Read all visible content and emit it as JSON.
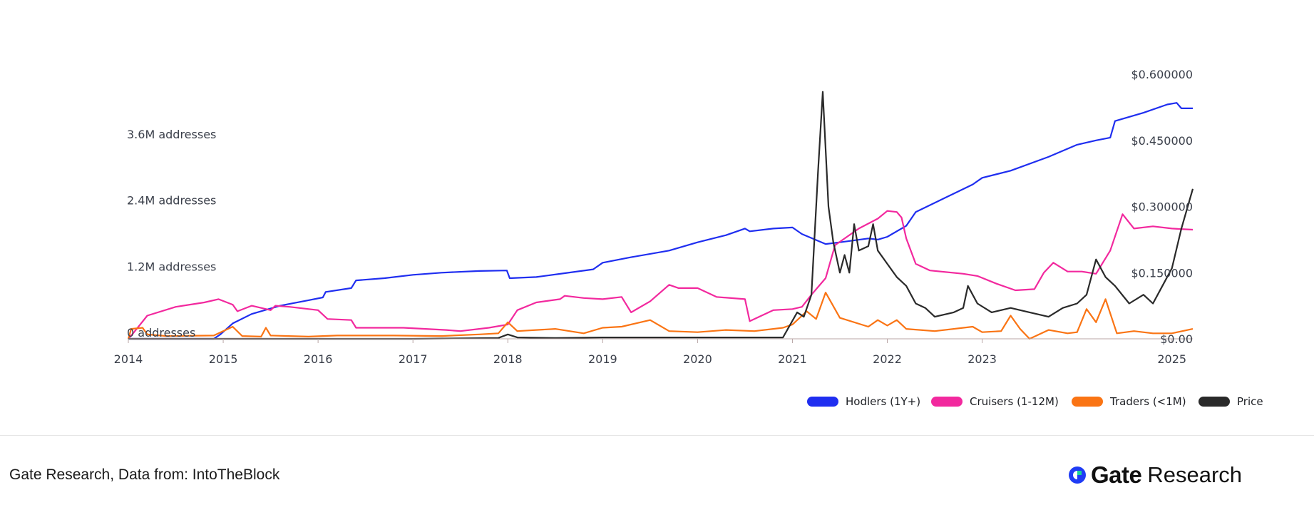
{
  "footer": {
    "source": "Gate Research, Data from: IntoTheBlock",
    "brand_name": "Gate",
    "brand_sub": "Research"
  },
  "colors": {
    "hodlers": "#1f2ef0",
    "cruisers": "#f2299e",
    "traders": "#fa7414",
    "price": "#2a2a2a",
    "axis": "#b9a6a6"
  },
  "chart_data": {
    "type": "line",
    "title": "",
    "xlabel": "",
    "ylabel": "",
    "x_ticks": [
      "2014",
      "2015",
      "2016",
      "2017",
      "2018",
      "2019",
      "2020",
      "2021",
      "2022",
      "2023",
      "2025"
    ],
    "x_tick_years": [
      2014,
      2015,
      2016,
      2017,
      2018,
      2019,
      2020,
      2021,
      2022,
      2023,
      2025
    ],
    "xlim": [
      2014.0,
      2025.22
    ],
    "left_axis": {
      "ticks": [
        "0 addresses",
        "1.2M addresses",
        "2.4M addresses",
        "3.6M addresses"
      ],
      "tick_values": [
        0,
        1.2,
        2.4,
        3.6
      ],
      "unit": "M addresses",
      "ylim": [
        0,
        4.8
      ]
    },
    "right_axis": {
      "ticks": [
        "$0.00",
        "$0.150000",
        "$0.300000",
        "$0.450000",
        "$0.600000"
      ],
      "tick_values": [
        0,
        0.15,
        0.3,
        0.45,
        0.6
      ],
      "ylim": [
        0,
        0.6
      ]
    },
    "legend_position": "bottom-right",
    "grid": false,
    "series": [
      {
        "name": "Hodlers (1Y+)",
        "axis": "left",
        "color": "#1f2ef0",
        "points": [
          [
            2014.0,
            0
          ],
          [
            2014.5,
            0
          ],
          [
            2014.9,
            0
          ],
          [
            2014.97,
            0.08
          ],
          [
            2015.1,
            0.28
          ],
          [
            2015.3,
            0.45
          ],
          [
            2015.6,
            0.6
          ],
          [
            2015.9,
            0.7
          ],
          [
            2016.05,
            0.75
          ],
          [
            2016.08,
            0.85
          ],
          [
            2016.35,
            0.92
          ],
          [
            2016.4,
            1.06
          ],
          [
            2016.7,
            1.1
          ],
          [
            2017.0,
            1.16
          ],
          [
            2017.3,
            1.2
          ],
          [
            2017.7,
            1.23
          ],
          [
            2017.99,
            1.24
          ],
          [
            2018.02,
            1.1
          ],
          [
            2018.3,
            1.12
          ],
          [
            2018.6,
            1.19
          ],
          [
            2018.9,
            1.26
          ],
          [
            2019.0,
            1.38
          ],
          [
            2019.3,
            1.48
          ],
          [
            2019.7,
            1.6
          ],
          [
            2020.0,
            1.75
          ],
          [
            2020.3,
            1.88
          ],
          [
            2020.5,
            2.0
          ],
          [
            2020.55,
            1.95
          ],
          [
            2020.8,
            2.0
          ],
          [
            2021.0,
            2.02
          ],
          [
            2021.1,
            1.9
          ],
          [
            2021.35,
            1.72
          ],
          [
            2021.5,
            1.75
          ],
          [
            2021.8,
            1.82
          ],
          [
            2021.9,
            1.8
          ],
          [
            2022.0,
            1.85
          ],
          [
            2022.2,
            2.05
          ],
          [
            2022.3,
            2.3
          ],
          [
            2022.6,
            2.55
          ],
          [
            2022.9,
            2.8
          ],
          [
            2023.0,
            2.92
          ],
          [
            2023.3,
            3.05
          ],
          [
            2023.7,
            3.3
          ],
          [
            2024.0,
            3.52
          ],
          [
            2024.2,
            3.6
          ],
          [
            2024.35,
            3.65
          ],
          [
            2024.4,
            3.95
          ],
          [
            2024.7,
            4.1
          ],
          [
            2024.95,
            4.25
          ],
          [
            2025.05,
            4.28
          ],
          [
            2025.1,
            4.18
          ],
          [
            2025.22,
            4.18
          ]
        ]
      },
      {
        "name": "Cruisers (1-12M)",
        "axis": "left",
        "color": "#f2299e",
        "points": [
          [
            2014.0,
            0
          ],
          [
            2014.05,
            0.1
          ],
          [
            2014.2,
            0.42
          ],
          [
            2014.5,
            0.58
          ],
          [
            2014.8,
            0.66
          ],
          [
            2014.95,
            0.72
          ],
          [
            2015.1,
            0.62
          ],
          [
            2015.15,
            0.5
          ],
          [
            2015.3,
            0.6
          ],
          [
            2015.5,
            0.52
          ],
          [
            2015.55,
            0.6
          ],
          [
            2015.7,
            0.58
          ],
          [
            2016.0,
            0.52
          ],
          [
            2016.1,
            0.36
          ],
          [
            2016.35,
            0.34
          ],
          [
            2016.4,
            0.2
          ],
          [
            2016.9,
            0.2
          ],
          [
            2017.35,
            0.16
          ],
          [
            2017.5,
            0.14
          ],
          [
            2017.8,
            0.2
          ],
          [
            2018.0,
            0.26
          ],
          [
            2018.1,
            0.52
          ],
          [
            2018.3,
            0.66
          ],
          [
            2018.55,
            0.72
          ],
          [
            2018.6,
            0.78
          ],
          [
            2018.8,
            0.74
          ],
          [
            2019.0,
            0.72
          ],
          [
            2019.2,
            0.76
          ],
          [
            2019.3,
            0.48
          ],
          [
            2019.5,
            0.68
          ],
          [
            2019.7,
            0.98
          ],
          [
            2019.8,
            0.92
          ],
          [
            2020.0,
            0.92
          ],
          [
            2020.2,
            0.76
          ],
          [
            2020.5,
            0.72
          ],
          [
            2020.55,
            0.32
          ],
          [
            2020.8,
            0.52
          ],
          [
            2021.0,
            0.54
          ],
          [
            2021.1,
            0.58
          ],
          [
            2021.2,
            0.8
          ],
          [
            2021.35,
            1.1
          ],
          [
            2021.45,
            1.7
          ],
          [
            2021.7,
            2.0
          ],
          [
            2021.9,
            2.18
          ],
          [
            2022.0,
            2.32
          ],
          [
            2022.1,
            2.3
          ],
          [
            2022.15,
            2.2
          ],
          [
            2022.2,
            1.82
          ],
          [
            2022.3,
            1.36
          ],
          [
            2022.45,
            1.24
          ],
          [
            2022.8,
            1.18
          ],
          [
            2022.95,
            1.14
          ],
          [
            2023.15,
            1.0
          ],
          [
            2023.35,
            0.88
          ],
          [
            2023.55,
            0.9
          ],
          [
            2023.65,
            1.2
          ],
          [
            2023.75,
            1.38
          ],
          [
            2023.9,
            1.22
          ],
          [
            2024.05,
            1.22
          ],
          [
            2024.2,
            1.18
          ],
          [
            2024.35,
            1.6
          ],
          [
            2024.48,
            2.26
          ],
          [
            2024.6,
            2.0
          ],
          [
            2024.8,
            2.04
          ],
          [
            2025.0,
            2.0
          ],
          [
            2025.22,
            1.98
          ]
        ]
      },
      {
        "name": "Traders (<1M)",
        "axis": "left",
        "color": "#fa7414",
        "points": [
          [
            2014.0,
            0
          ],
          [
            2014.03,
            0.18
          ],
          [
            2014.15,
            0.2
          ],
          [
            2014.2,
            0.08
          ],
          [
            2014.4,
            0.05
          ],
          [
            2014.9,
            0.06
          ],
          [
            2015.1,
            0.22
          ],
          [
            2015.2,
            0.05
          ],
          [
            2015.4,
            0.04
          ],
          [
            2015.45,
            0.2
          ],
          [
            2015.5,
            0.06
          ],
          [
            2015.9,
            0.04
          ],
          [
            2016.2,
            0.06
          ],
          [
            2016.8,
            0.06
          ],
          [
            2017.3,
            0.05
          ],
          [
            2017.7,
            0.08
          ],
          [
            2017.9,
            0.1
          ],
          [
            2018.0,
            0.3
          ],
          [
            2018.1,
            0.14
          ],
          [
            2018.5,
            0.18
          ],
          [
            2018.8,
            0.1
          ],
          [
            2019.0,
            0.2
          ],
          [
            2019.2,
            0.22
          ],
          [
            2019.5,
            0.34
          ],
          [
            2019.6,
            0.24
          ],
          [
            2019.7,
            0.14
          ],
          [
            2020.0,
            0.12
          ],
          [
            2020.3,
            0.16
          ],
          [
            2020.6,
            0.14
          ],
          [
            2020.9,
            0.2
          ],
          [
            2021.0,
            0.26
          ],
          [
            2021.15,
            0.5
          ],
          [
            2021.25,
            0.36
          ],
          [
            2021.35,
            0.84
          ],
          [
            2021.5,
            0.38
          ],
          [
            2021.8,
            0.22
          ],
          [
            2021.9,
            0.34
          ],
          [
            2022.0,
            0.24
          ],
          [
            2022.1,
            0.34
          ],
          [
            2022.2,
            0.18
          ],
          [
            2022.5,
            0.14
          ],
          [
            2022.9,
            0.22
          ],
          [
            2023.0,
            0.12
          ],
          [
            2023.2,
            0.14
          ],
          [
            2023.3,
            0.42
          ],
          [
            2023.4,
            0.18
          ],
          [
            2023.5,
            0.0
          ],
          [
            2023.7,
            0.16
          ],
          [
            2023.9,
            0.1
          ],
          [
            2024.0,
            0.12
          ],
          [
            2024.1,
            0.54
          ],
          [
            2024.2,
            0.3
          ],
          [
            2024.3,
            0.72
          ],
          [
            2024.42,
            0.1
          ],
          [
            2024.6,
            0.14
          ],
          [
            2024.8,
            0.1
          ],
          [
            2025.0,
            0.1
          ],
          [
            2025.22,
            0.18
          ]
        ]
      },
      {
        "name": "Price",
        "axis": "right",
        "color": "#2a2a2a",
        "points": [
          [
            2014.0,
            0.0
          ],
          [
            2014.5,
            0.0
          ],
          [
            2015.0,
            0.0
          ],
          [
            2016.0,
            0.0
          ],
          [
            2017.0,
            0.0
          ],
          [
            2017.9,
            0.002
          ],
          [
            2018.0,
            0.01
          ],
          [
            2018.1,
            0.003
          ],
          [
            2018.5,
            0.002
          ],
          [
            2019.0,
            0.003
          ],
          [
            2019.5,
            0.003
          ],
          [
            2020.0,
            0.003
          ],
          [
            2020.5,
            0.003
          ],
          [
            2020.9,
            0.003
          ],
          [
            2021.05,
            0.06
          ],
          [
            2021.12,
            0.05
          ],
          [
            2021.2,
            0.1
          ],
          [
            2021.27,
            0.38
          ],
          [
            2021.32,
            0.56
          ],
          [
            2021.38,
            0.3
          ],
          [
            2021.43,
            0.22
          ],
          [
            2021.5,
            0.15
          ],
          [
            2021.55,
            0.19
          ],
          [
            2021.6,
            0.15
          ],
          [
            2021.65,
            0.26
          ],
          [
            2021.7,
            0.2
          ],
          [
            2021.8,
            0.21
          ],
          [
            2021.85,
            0.26
          ],
          [
            2021.9,
            0.2
          ],
          [
            2022.0,
            0.17
          ],
          [
            2022.1,
            0.14
          ],
          [
            2022.2,
            0.12
          ],
          [
            2022.3,
            0.08
          ],
          [
            2022.4,
            0.07
          ],
          [
            2022.5,
            0.05
          ],
          [
            2022.7,
            0.06
          ],
          [
            2022.8,
            0.07
          ],
          [
            2022.85,
            0.12
          ],
          [
            2022.95,
            0.08
          ],
          [
            2023.1,
            0.06
          ],
          [
            2023.3,
            0.07
          ],
          [
            2023.5,
            0.06
          ],
          [
            2023.7,
            0.05
          ],
          [
            2023.85,
            0.07
          ],
          [
            2024.0,
            0.08
          ],
          [
            2024.1,
            0.1
          ],
          [
            2024.2,
            0.18
          ],
          [
            2024.3,
            0.14
          ],
          [
            2024.4,
            0.12
          ],
          [
            2024.55,
            0.08
          ],
          [
            2024.7,
            0.1
          ],
          [
            2024.8,
            0.08
          ],
          [
            2024.9,
            0.12
          ],
          [
            2025.0,
            0.16
          ],
          [
            2025.1,
            0.25
          ],
          [
            2025.22,
            0.34
          ]
        ]
      }
    ]
  }
}
